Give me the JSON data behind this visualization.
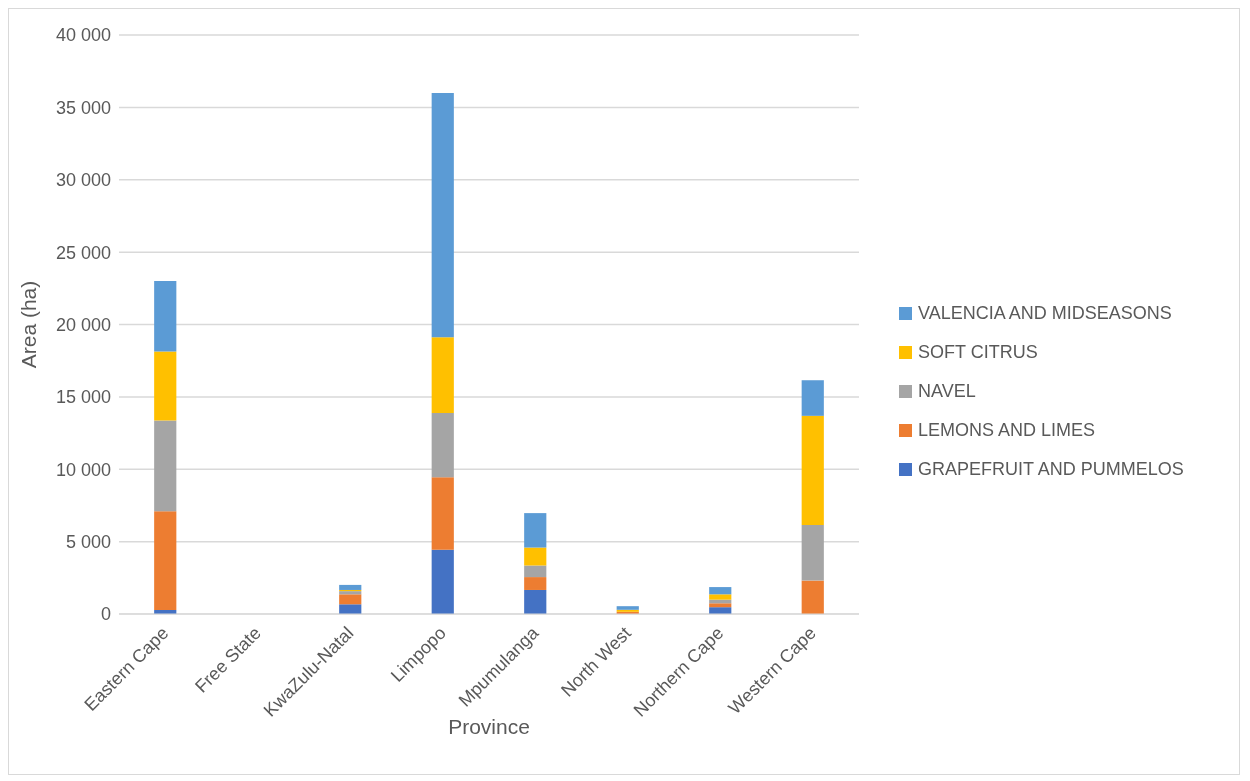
{
  "chart_data": {
    "type": "bar",
    "stacked": true,
    "xlabel": "Province",
    "ylabel": "Area (ha)",
    "categories": [
      "Eastern Cape",
      "Free State",
      "KwaZulu-Natal",
      "Limpopo",
      "Mpumulanga",
      "North West",
      "Northern Cape",
      "Western Cape"
    ],
    "series": [
      {
        "name": "GRAPEFRUIT AND PUMMELOS",
        "color": "#4472c4",
        "values": [
          280,
          0,
          670,
          4440,
          1660,
          0,
          470,
          0
        ]
      },
      {
        "name": "LEMONS AND LIMES",
        "color": "#ed7d31",
        "values": [
          6810,
          0,
          690,
          5010,
          890,
          150,
          270,
          2310
        ]
      },
      {
        "name": "NAVEL",
        "color": "#a5a5a5",
        "values": [
          6280,
          0,
          220,
          4440,
          800,
          null,
          250,
          3840
        ]
      },
      {
        "name": "SOFT CITRUS",
        "color": "#ffc000",
        "values": [
          4760,
          0,
          80,
          5230,
          1240,
          140,
          370,
          7540
        ]
      },
      {
        "name": "VALENCIA AND MIDSEASONS",
        "color": "#5b9bd5",
        "values": [
          4870,
          0,
          350,
          16880,
          2380,
          250,
          500,
          2460
        ]
      }
    ],
    "ylim": [
      0,
      40000
    ],
    "yticks": [
      0,
      {
        "value": 5000,
        "label": "5 000"
      },
      {
        "value": 10000,
        "label": "10 000"
      },
      {
        "value": 15000,
        "label": "15 000"
      },
      {
        "value": 20000,
        "label": "20 000"
      },
      {
        "value": 25000,
        "label": "25 000"
      },
      {
        "value": 30000,
        "label": "30 000"
      },
      {
        "value": 35000,
        "label": "35 000"
      },
      {
        "value": 40000,
        "label": "40 000"
      }
    ],
    "grid": "y",
    "legend": "right"
  }
}
